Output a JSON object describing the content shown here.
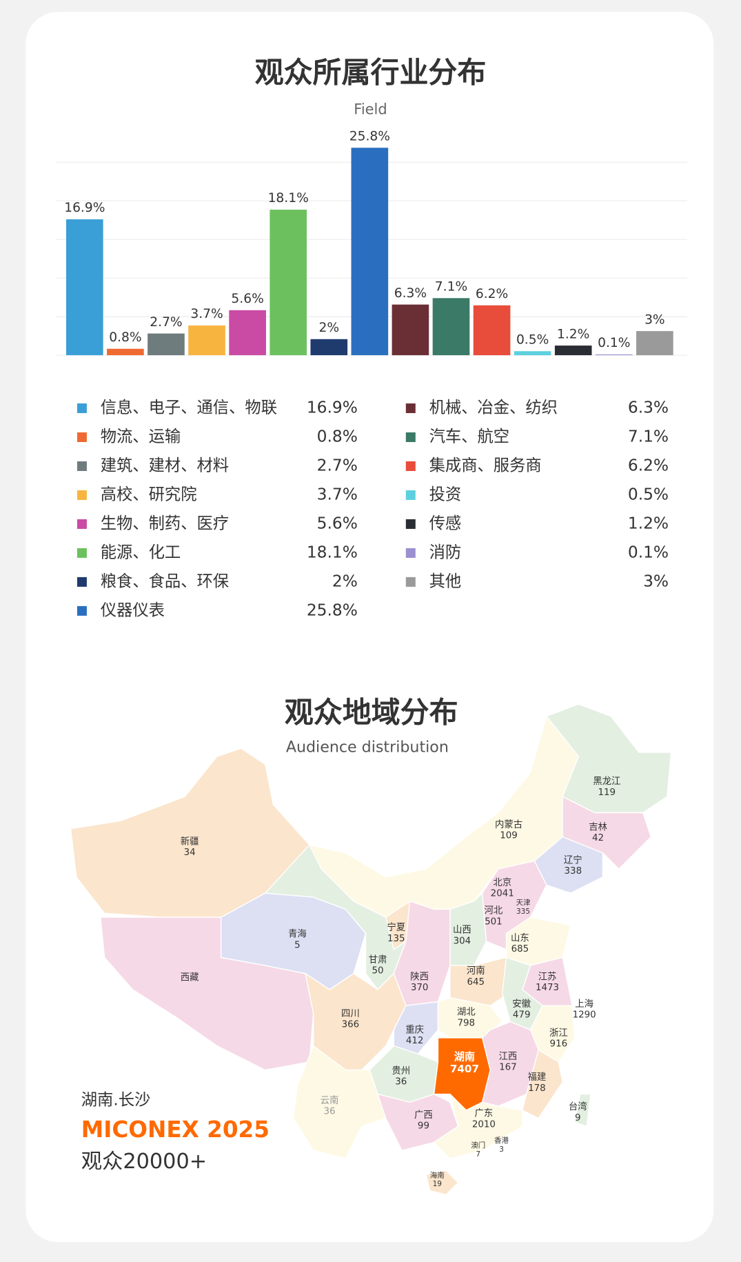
{
  "chart_data": {
    "type": "bar",
    "title": "观众所属行业分布",
    "subtitle": "Field",
    "categories": [
      "信息、电子、通信、物联",
      "物流、运输",
      "建筑、建材、材料",
      "高校、研究院",
      "生物、制药、医疗",
      "能源、化工",
      "粮食、食品、环保",
      "仪器仪表",
      "机械、冶金、纺织",
      "汽车、航空",
      "集成商、服务商",
      "投资",
      "传感",
      "消防",
      "其他"
    ],
    "values": [
      16.9,
      0.8,
      2.7,
      3.7,
      5.6,
      18.1,
      2,
      25.8,
      6.3,
      7.1,
      6.2,
      0.5,
      1.2,
      0.1,
      3
    ],
    "value_labels": [
      "16.9%",
      "0.8%",
      "2.7%",
      "3.7%",
      "5.6%",
      "18.1%",
      "2%",
      "25.8%",
      "6.3%",
      "7.1%",
      "6.2%",
      "0.5%",
      "1.2%",
      "0.1%",
      "3%"
    ],
    "colors": [
      "#3a9fd6",
      "#ee6a32",
      "#6f7c7d",
      "#f7b540",
      "#c94ba3",
      "#6cc15e",
      "#1f3b6e",
      "#2a6fbf",
      "#6a2f35",
      "#3a7a66",
      "#e84c3a",
      "#5dd0df",
      "#2a2d33",
      "#9b8fd0",
      "#9a9a9a"
    ],
    "ylim": [
      0,
      24
    ],
    "yticks": [
      0,
      4.8,
      9.6,
      14.4,
      19.2,
      24
    ],
    "grid": true
  },
  "map": {
    "title": "观众地域分布",
    "subtitle": "Audience distribution",
    "regions": [
      {
        "name": "新疆",
        "value": 34
      },
      {
        "name": "西藏",
        "value": null
      },
      {
        "name": "青海",
        "value": 5
      },
      {
        "name": "甘肃",
        "value": 50
      },
      {
        "name": "宁夏",
        "value": 135
      },
      {
        "name": "内蒙古",
        "value": 109
      },
      {
        "name": "黑龙江",
        "value": 119
      },
      {
        "name": "吉林",
        "value": 42
      },
      {
        "name": "辽宁",
        "value": 338
      },
      {
        "name": "北京",
        "value": 2041
      },
      {
        "name": "天津",
        "value": 335
      },
      {
        "name": "河北",
        "value": 501
      },
      {
        "name": "山西",
        "value": 304
      },
      {
        "name": "山东",
        "value": 685
      },
      {
        "name": "陕西",
        "value": 370
      },
      {
        "name": "河南",
        "value": 645
      },
      {
        "name": "江苏",
        "value": 1473
      },
      {
        "name": "上海",
        "value": 1290
      },
      {
        "name": "安徽",
        "value": 479
      },
      {
        "name": "湖北",
        "value": 798
      },
      {
        "name": "四川",
        "value": 366
      },
      {
        "name": "重庆",
        "value": 412
      },
      {
        "name": "浙江",
        "value": 916
      },
      {
        "name": "湖南",
        "value": 7407
      },
      {
        "name": "江西",
        "value": 167
      },
      {
        "name": "贵州",
        "value": 36
      },
      {
        "name": "福建",
        "value": 178
      },
      {
        "name": "云南",
        "value": 36
      },
      {
        "name": "台湾",
        "value": 9
      },
      {
        "name": "广西",
        "value": 99
      },
      {
        "name": "广东",
        "value": 2010
      },
      {
        "name": "澳门",
        "value": 7
      },
      {
        "name": "香港",
        "value": 3
      },
      {
        "name": "海南",
        "value": 19
      }
    ]
  },
  "footer": {
    "location": "湖南.长沙",
    "brand": "MICONEX 2025",
    "audience": "观众20000+"
  }
}
